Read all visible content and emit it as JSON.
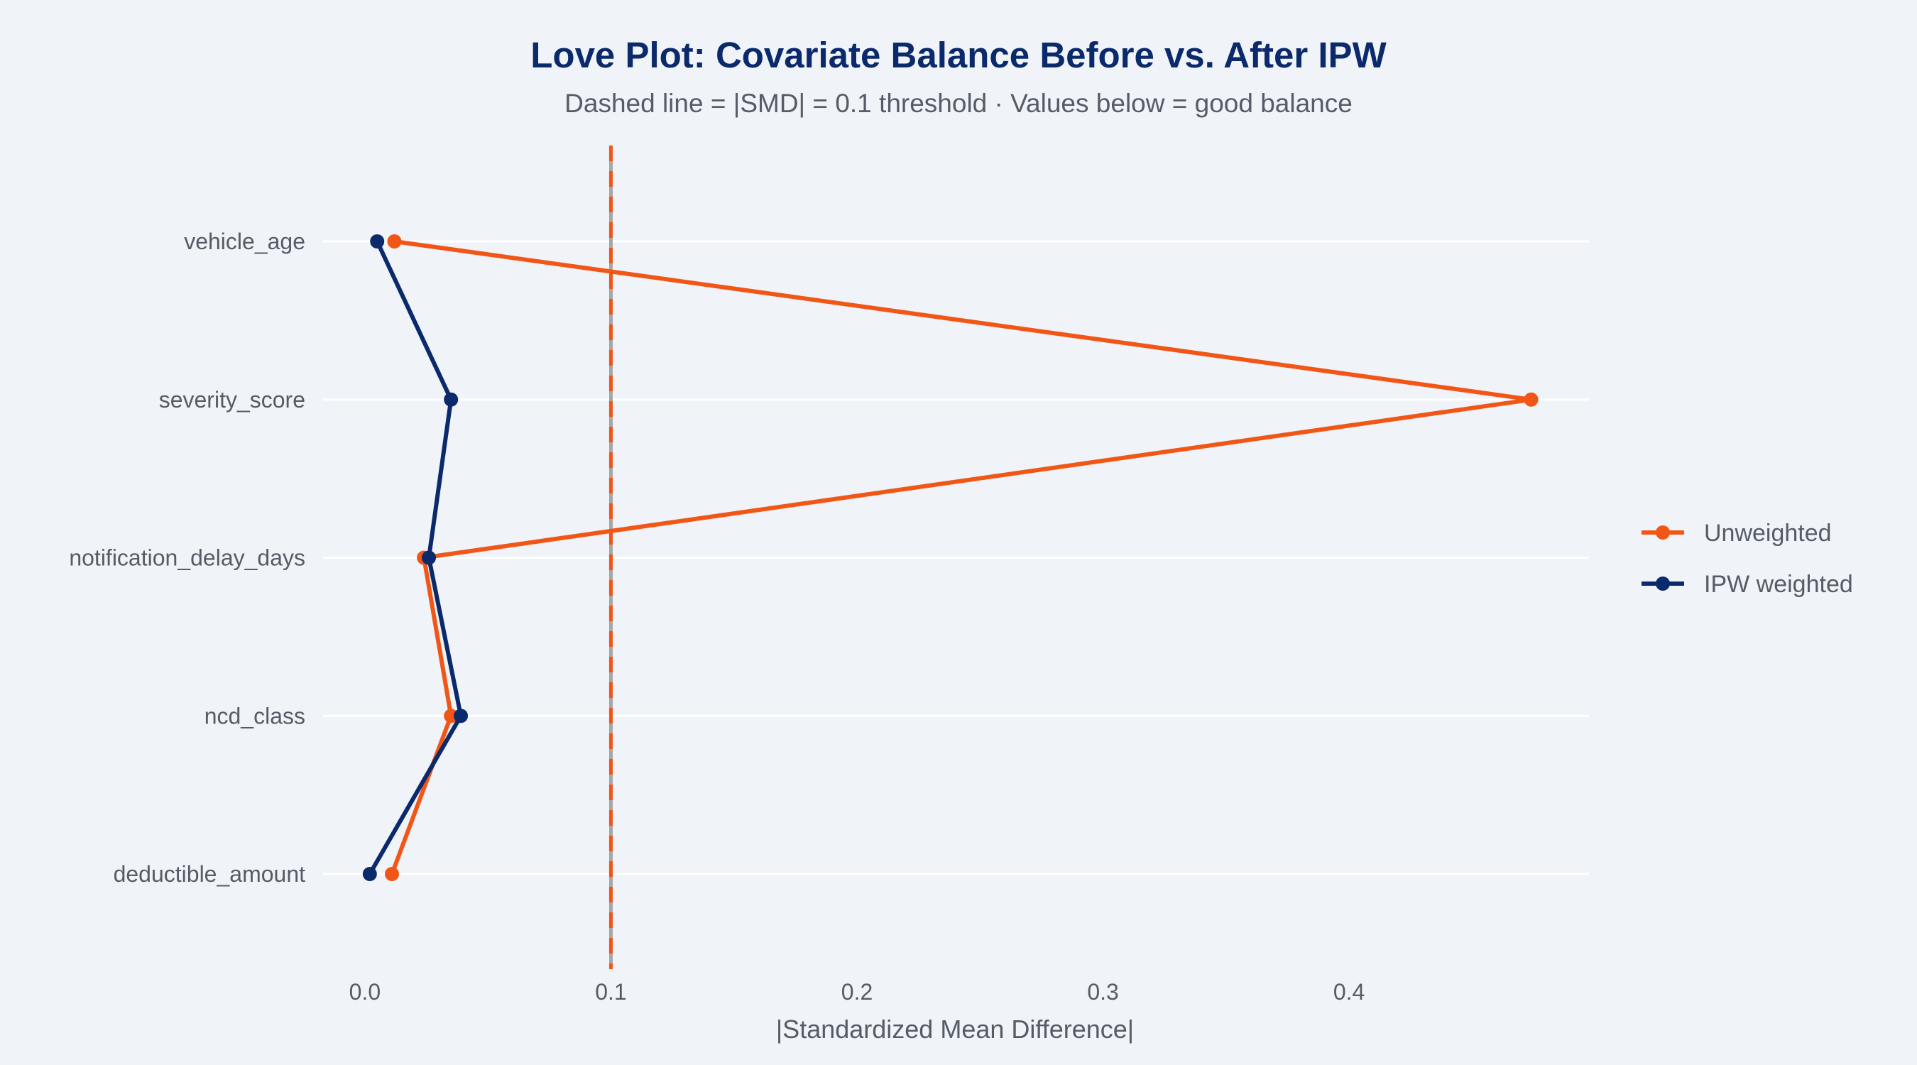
{
  "chart_data": {
    "type": "line",
    "title": "Love Plot: Covariate Balance Before vs. After IPW",
    "subtitle": "Dashed line = |SMD| = 0.1 threshold · Values below = good balance",
    "xlabel": "|Standardized Mean Difference|",
    "ylabel": "",
    "xlim": [
      -0.017,
      0.4975
    ],
    "xticks": [
      0.0,
      0.1,
      0.2,
      0.3,
      0.4
    ],
    "xtick_labels": [
      "0.0",
      "0.1",
      "0.2",
      "0.3",
      "0.4"
    ],
    "categories": [
      "vehicle_age",
      "severity_score",
      "notification_delay_days",
      "ncd_class",
      "deductible_amount"
    ],
    "threshold": 0.1,
    "grid": true,
    "legend_position": "right",
    "series": [
      {
        "name": "Unweighted",
        "color": "#f25617",
        "values": [
          0.012,
          0.474,
          0.024,
          0.035,
          0.011
        ]
      },
      {
        "name": "IPW weighted",
        "color": "#0b2a6b",
        "values": [
          0.005,
          0.035,
          0.026,
          0.039,
          0.002
        ]
      }
    ],
    "threshold_color": "#f25617",
    "threshold_inner_color": "#a6a6a6"
  }
}
